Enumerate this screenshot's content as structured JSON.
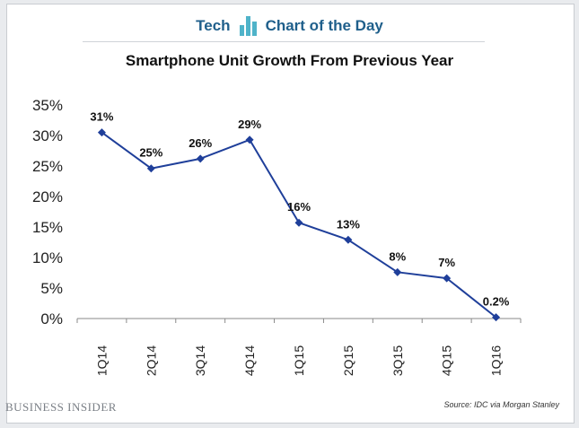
{
  "header": {
    "left": "Tech",
    "right": "Chart of the Day",
    "icon": "bar-chart-icon"
  },
  "brand": "BUSINESS INSIDER",
  "source": "Source: IDC via Morgan Stanley",
  "colors": {
    "line": "#1f3f9a",
    "header_text": "#1f5f8b",
    "icon": "#4fb3c9"
  },
  "chart_data": {
    "type": "line",
    "title": "Smartphone Unit Growth From Previous Year",
    "xlabel": "",
    "ylabel": "",
    "categories": [
      "1Q14",
      "2Q14",
      "3Q14",
      "4Q14",
      "1Q15",
      "2Q15",
      "3Q15",
      "4Q15",
      "1Q16"
    ],
    "values": [
      30.5,
      24.6,
      26.2,
      29.3,
      15.7,
      12.9,
      7.6,
      6.6,
      0.2
    ],
    "labels": [
      "31%",
      "25%",
      "26%",
      "29%",
      "16%",
      "13%",
      "8%",
      "7%",
      "0.2%"
    ],
    "ylim": [
      0,
      35
    ],
    "yticks": [
      0,
      5,
      10,
      15,
      20,
      25,
      30,
      35
    ],
    "ytick_labels": [
      "0%",
      "5%",
      "10%",
      "15%",
      "20%",
      "25%",
      "30%",
      "35%"
    ],
    "grid": false,
    "legend": "none"
  }
}
